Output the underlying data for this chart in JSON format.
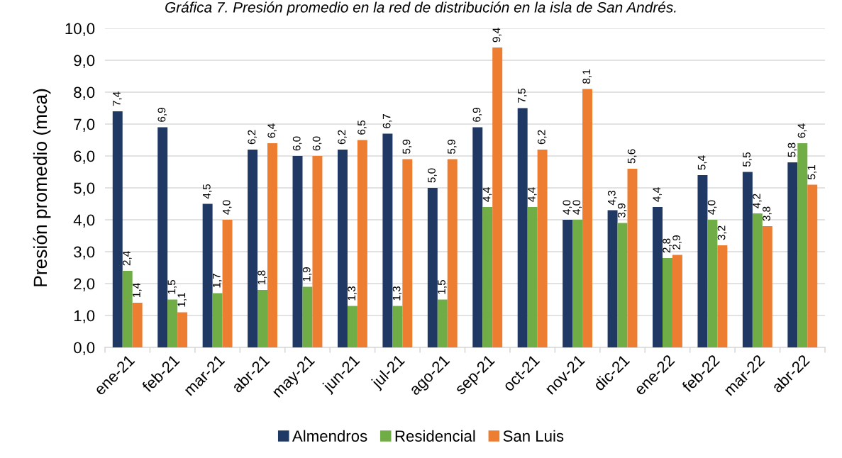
{
  "chart_data": {
    "type": "bar",
    "title": "Gráfica 7. Presión promedio en la red de distribución en la isla de San Andrés.",
    "ylabel": "Presión promedio (mca)",
    "categories": [
      "ene-21",
      "feb-21",
      "mar-21",
      "abr-21",
      "may-21",
      "jun-21",
      "jul-21",
      "ago-21",
      "sep-21",
      "oct-21",
      "nov-21",
      "dic-21",
      "ene-22",
      "feb-22",
      "mar-22",
      "abr-22"
    ],
    "series": [
      {
        "name": "Almendros",
        "color": "#203864",
        "values": [
          7.4,
          6.9,
          4.5,
          6.2,
          6.0,
          6.2,
          6.7,
          5.0,
          6.9,
          7.5,
          4.0,
          4.3,
          4.4,
          5.4,
          5.5,
          5.8
        ],
        "value_labels": [
          "7,4",
          "6,9",
          "4,5",
          "6,2",
          "6,0",
          "6,2",
          "6,7",
          "5,0",
          "6,9",
          "7,5",
          "4,0",
          "4,3",
          "4,4",
          "5,4",
          "5,5",
          "5,8"
        ]
      },
      {
        "name": "Residencial",
        "color": "#70ad47",
        "values": [
          2.4,
          1.5,
          1.7,
          1.8,
          1.9,
          1.3,
          1.3,
          1.5,
          4.4,
          4.4,
          4.0,
          3.9,
          2.8,
          4.0,
          4.2,
          6.4
        ],
        "value_labels": [
          "2,4",
          "1,5",
          "1,7",
          "1,8",
          "1,9",
          "1,3",
          "1,3",
          "1,5",
          "4,4",
          "4,4",
          "4,0",
          "3,9",
          "2,8",
          "4,0",
          "4,2",
          "6,4"
        ]
      },
      {
        "name": "San Luis",
        "color": "#ed7d31",
        "values": [
          1.4,
          1.1,
          4.0,
          6.4,
          6.0,
          6.5,
          5.9,
          5.9,
          9.4,
          6.2,
          8.1,
          5.6,
          2.9,
          3.2,
          3.8,
          5.1
        ],
        "value_labels": [
          "1,4",
          "1,1",
          "4,0",
          "6,4",
          "6,0",
          "6,5",
          "5,9",
          "5,9",
          "9,4",
          "6,2",
          "8,1",
          "5,6",
          "2,9",
          "3,2",
          "3,8",
          "5,1"
        ]
      }
    ],
    "ylim": [
      0,
      10
    ],
    "yticks": [
      {
        "value": 0,
        "label": "0,0"
      },
      {
        "value": 1,
        "label": "1,0"
      },
      {
        "value": 2,
        "label": "2,0"
      },
      {
        "value": 3,
        "label": "3,0"
      },
      {
        "value": 4,
        "label": "4,0"
      },
      {
        "value": 5,
        "label": "5,0"
      },
      {
        "value": 6,
        "label": "6,0"
      },
      {
        "value": 7,
        "label": "7,0"
      },
      {
        "value": 8,
        "label": "8,0"
      },
      {
        "value": 9,
        "label": "9,0"
      },
      {
        "value": 10,
        "label": "10,0"
      }
    ],
    "grid": "y",
    "legend": "bottom"
  }
}
